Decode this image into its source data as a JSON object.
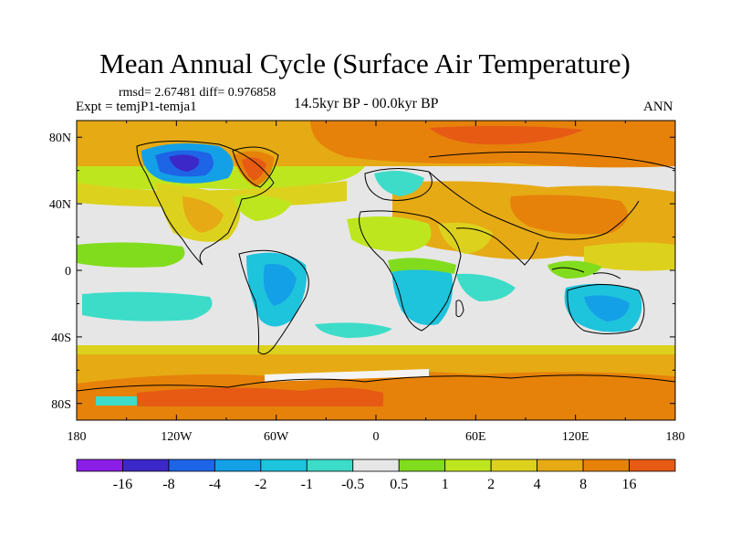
{
  "header": {
    "title": "Mean Annual Cycle (Surface Air Temperature)",
    "stats": "rmsd= 2.67481 diff= 0.976858",
    "experiment": "Expt = temjP1-temja1",
    "period": "14.5kyr BP - 00.0kyr BP",
    "season": "ANN"
  },
  "chart_data": {
    "type": "heatmap",
    "title": "Mean Annual Cycle (Surface Air Temperature)",
    "variable": "Surface Air Temperature difference",
    "experiment": "temjP1-temja1",
    "period": "14.5kyr BP - 00.0kyr BP",
    "season": "ANN",
    "rmsd": 2.67481,
    "diff": 0.976858,
    "xlim": [
      -180,
      180
    ],
    "ylim": [
      -90,
      90
    ],
    "x_ticks": [
      {
        "value": -180,
        "label": "180"
      },
      {
        "value": -120,
        "label": "120W"
      },
      {
        "value": -60,
        "label": "60W"
      },
      {
        "value": 0,
        "label": "0"
      },
      {
        "value": 60,
        "label": "60E"
      },
      {
        "value": 120,
        "label": "120E"
      },
      {
        "value": 180,
        "label": "180"
      }
    ],
    "y_ticks": [
      {
        "value": 80,
        "label": "80N"
      },
      {
        "value": 40,
        "label": "40N"
      },
      {
        "value": 0,
        "label": "0"
      },
      {
        "value": -40,
        "label": "40S"
      },
      {
        "value": -80,
        "label": "80S"
      }
    ],
    "colorbar": {
      "bins": [
        {
          "color": "#8a1ee6",
          "label": ""
        },
        {
          "color": "#3c28c8",
          "label": "-16"
        },
        {
          "color": "#1e64e6",
          "label": "-8"
        },
        {
          "color": "#14a0e6",
          "label": "-4"
        },
        {
          "color": "#1ec3dc",
          "label": "-2"
        },
        {
          "color": "#3cdcc8",
          "label": "-1"
        },
        {
          "color": "#e6e6e6",
          "label": "-0.5"
        },
        {
          "color": "#82dc1e",
          "label": "0.5"
        },
        {
          "color": "#bee61e",
          "label": "1"
        },
        {
          "color": "#dcd21e",
          "label": "2"
        },
        {
          "color": "#e6aa14",
          "label": "4"
        },
        {
          "color": "#e6820a",
          "label": "8"
        },
        {
          "color": "#e65a14",
          "label": "16"
        }
      ]
    }
  }
}
